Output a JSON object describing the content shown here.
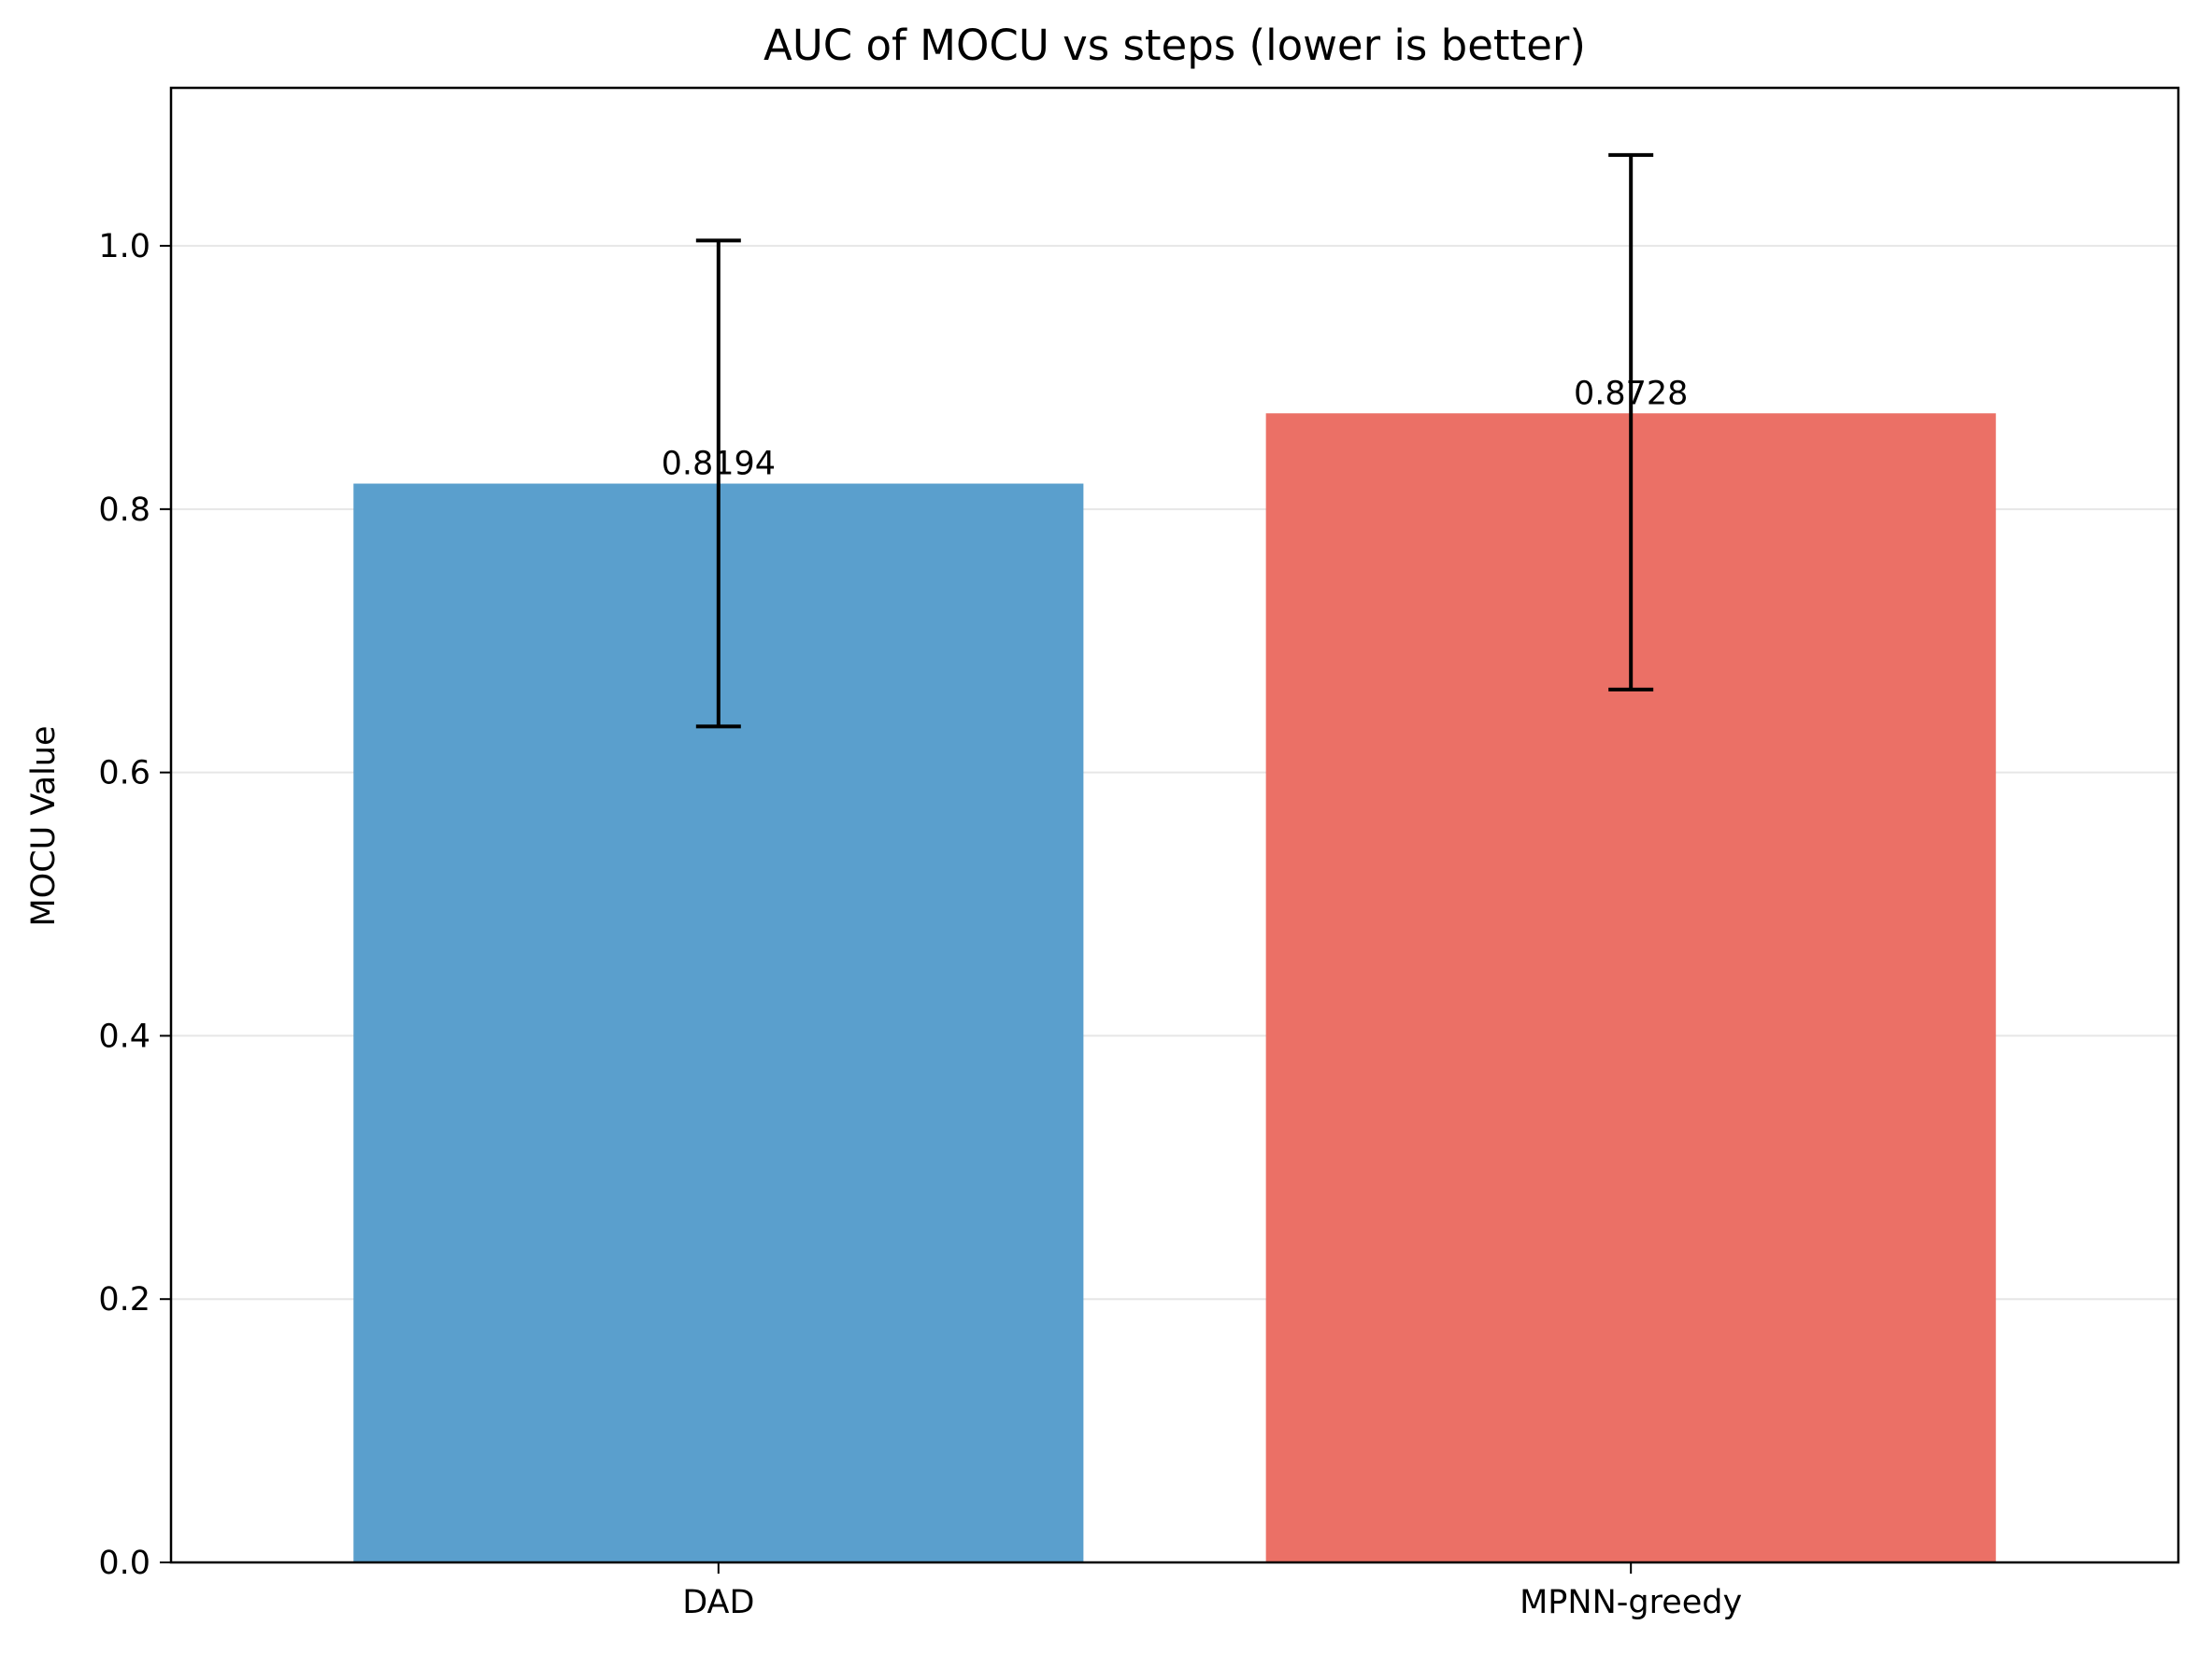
{
  "chart_data": {
    "type": "bar",
    "title": "AUC of MOCU vs steps (lower is better)",
    "xlabel": "",
    "ylabel": "MOCU Value",
    "categories": [
      "DAD",
      "MPNN-greedy"
    ],
    "values": [
      0.8194,
      0.8728
    ],
    "data_labels": [
      "0.8194",
      "0.8728"
    ],
    "error_bars": [
      {
        "low": 0.635,
        "high": 1.004
      },
      {
        "low": 0.663,
        "high": 1.069
      }
    ],
    "colors": [
      "#5a9fcd",
      "#eb7066"
    ],
    "ylim": [
      0,
      1.12
    ],
    "yticks": [
      0.0,
      0.2,
      0.4,
      0.6,
      0.8,
      1.0
    ],
    "ytick_labels": [
      "0.0",
      "0.2",
      "0.4",
      "0.6",
      "0.8",
      "1.0"
    ],
    "grid": "horizontal",
    "legend": "none"
  }
}
